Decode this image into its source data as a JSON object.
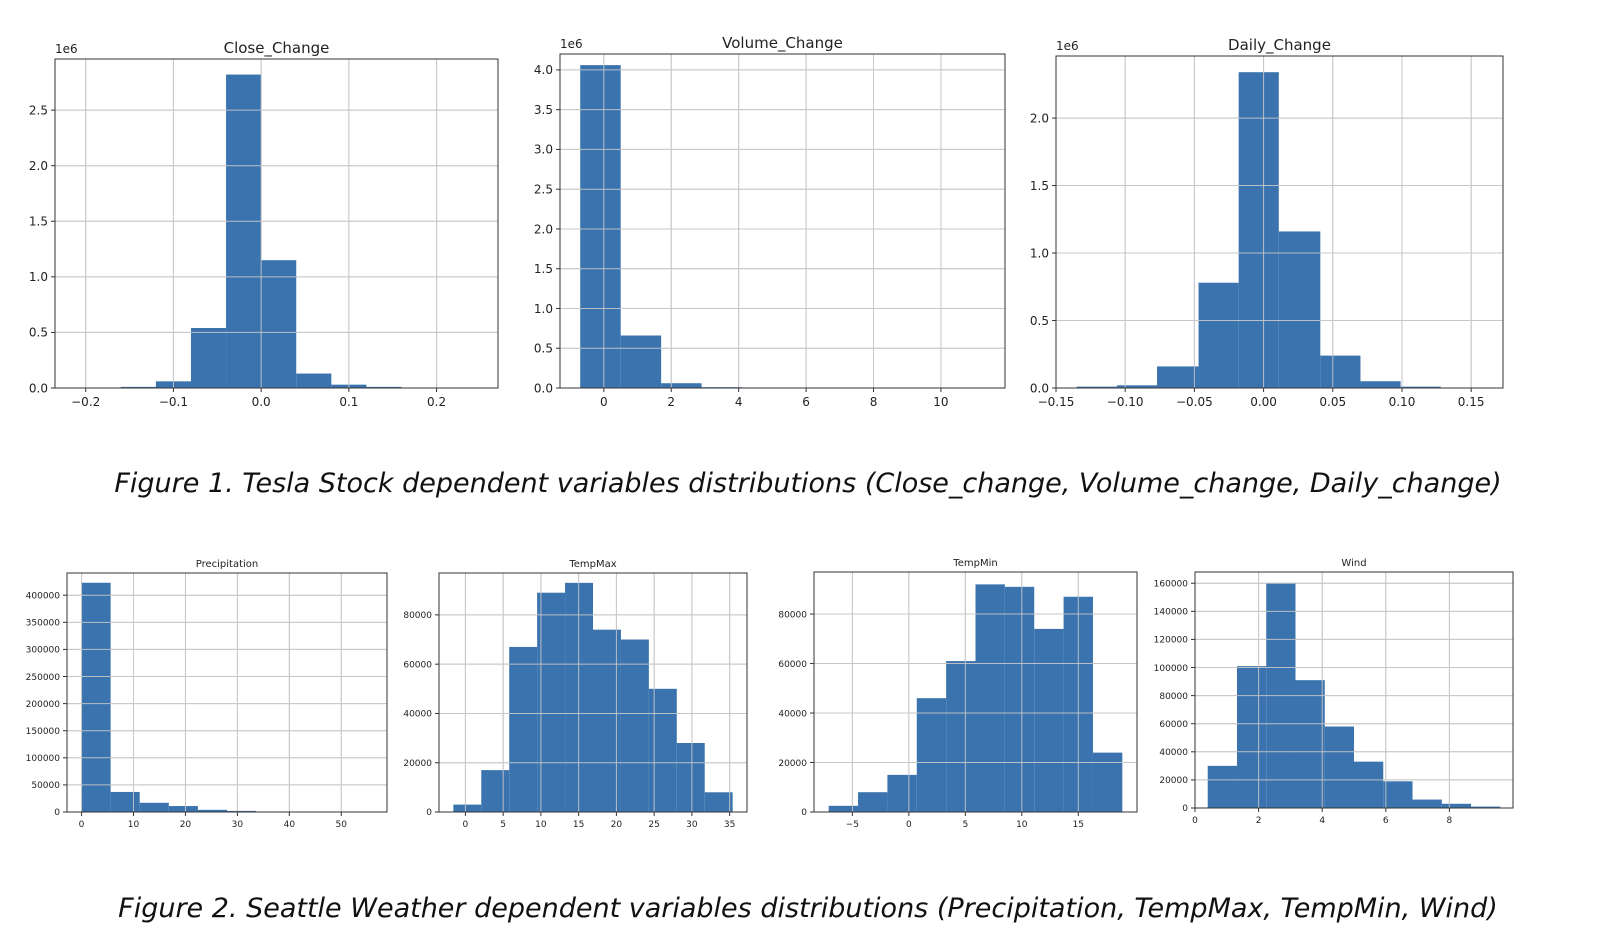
{
  "figure1": {
    "caption": "Figure 1. Tesla Stock dependent variables distributions (Close_change, Volume_change, Daily_change)"
  },
  "figure2": {
    "caption": "Figure 2. Seattle Weather dependent variables distributions (Precipitation, TempMax, TempMin, Wind)"
  },
  "style": {
    "bar_color": "#3a73ad",
    "grid_color": "#c8c8c8",
    "axis_color": "#333333"
  },
  "chart_data": [
    {
      "type": "bar",
      "title": "Close_Change",
      "multiplier": "1e6",
      "bin_edges": [
        -0.2,
        -0.16,
        -0.12,
        -0.08,
        -0.04,
        0.0,
        0.04,
        0.08,
        0.12,
        0.16,
        0.2
      ],
      "values": [
        0.0,
        0.01,
        0.06,
        0.54,
        2.82,
        1.15,
        0.13,
        0.03,
        0.01,
        0.0
      ],
      "xlim": [
        -0.235,
        0.27
      ],
      "ylim": [
        0,
        2.96
      ],
      "xticks": [
        -0.2,
        -0.1,
        0.0,
        0.1,
        0.2
      ],
      "xtick_labels": [
        "−0.2",
        "−0.1",
        "0.0",
        "0.1",
        "0.2"
      ],
      "yticks": [
        0.0,
        0.5,
        1.0,
        1.5,
        2.0,
        2.5
      ],
      "ytick_labels": [
        "0.0",
        "0.5",
        "1.0",
        "1.5",
        "2.0",
        "2.5"
      ],
      "grid": true
    },
    {
      "type": "bar",
      "title": "Volume_Change",
      "multiplier": "1e6",
      "bin_edges": [
        -0.7,
        0.5,
        1.7,
        2.9,
        4.1,
        5.3,
        6.5,
        7.7,
        8.9,
        10.1,
        11.3
      ],
      "values": [
        4.06,
        0.66,
        0.06,
        0.01,
        0.0,
        0.0,
        0.0,
        0.0,
        0.0,
        0.0
      ],
      "xlim": [
        -1.3,
        11.9
      ],
      "ylim": [
        0,
        4.2
      ],
      "xticks": [
        0,
        2,
        4,
        6,
        8,
        10
      ],
      "xtick_labels": [
        "0",
        "2",
        "4",
        "6",
        "8",
        "10"
      ],
      "yticks": [
        0.0,
        0.5,
        1.0,
        1.5,
        2.0,
        2.5,
        3.0,
        3.5,
        4.0
      ],
      "ytick_labels": [
        "0.0",
        "0.5",
        "1.0",
        "1.5",
        "2.0",
        "2.5",
        "3.0",
        "3.5",
        "4.0"
      ],
      "grid": true
    },
    {
      "type": "bar",
      "title": "Daily_Change",
      "multiplier": "1e6",
      "bin_edges": [
        -0.135,
        -0.106,
        -0.077,
        -0.047,
        -0.018,
        0.011,
        0.041,
        0.07,
        0.099,
        0.128,
        0.158
      ],
      "values": [
        0.01,
        0.02,
        0.16,
        0.78,
        2.34,
        1.16,
        0.24,
        0.05,
        0.01,
        0.0
      ],
      "xlim": [
        -0.15,
        0.173
      ],
      "ylim": [
        0,
        2.46
      ],
      "xticks": [
        -0.15,
        -0.1,
        -0.05,
        0.0,
        0.05,
        0.1,
        0.15
      ],
      "xtick_labels": [
        "−0.15",
        "−0.10",
        "−0.05",
        "0.00",
        "0.05",
        "0.10",
        "0.15"
      ],
      "yticks": [
        0.0,
        0.5,
        1.0,
        1.5,
        2.0
      ],
      "ytick_labels": [
        "0.0",
        "0.5",
        "1.0",
        "1.5",
        "2.0"
      ],
      "grid": true
    },
    {
      "type": "bar",
      "title": "Precipitation",
      "multiplier": "",
      "bin_edges": [
        0,
        5.6,
        11.2,
        16.8,
        22.4,
        28,
        33.6,
        39.2,
        44.8,
        50.4,
        56
      ],
      "values": [
        423000,
        37000,
        17000,
        11000,
        4000,
        2000,
        500,
        200,
        100,
        50
      ],
      "xlim": [
        -2.8,
        58.8
      ],
      "ylim": [
        0,
        441000
      ],
      "xticks": [
        0,
        10,
        20,
        30,
        40,
        50
      ],
      "xtick_labels": [
        "0",
        "10",
        "20",
        "30",
        "40",
        "50"
      ],
      "yticks": [
        0,
        50000,
        100000,
        150000,
        200000,
        250000,
        300000,
        350000,
        400000
      ],
      "ytick_labels": [
        "0",
        "50000",
        "100000",
        "150000",
        "200000",
        "250000",
        "300000",
        "350000",
        "400000"
      ],
      "grid": true
    },
    {
      "type": "bar",
      "title": "TempMax",
      "multiplier": "",
      "bin_edges": [
        -1.6,
        2.1,
        5.8,
        9.5,
        13.2,
        16.9,
        20.6,
        24.3,
        28.0,
        31.7,
        35.4
      ],
      "values": [
        3000,
        17000,
        67000,
        89000,
        93000,
        74000,
        70000,
        50000,
        28000,
        8000
      ],
      "xlim": [
        -3.5,
        37.3
      ],
      "ylim": [
        0,
        97000
      ],
      "xticks": [
        0,
        5,
        10,
        15,
        20,
        25,
        30,
        35
      ],
      "xtick_labels": [
        "0",
        "5",
        "10",
        "15",
        "20",
        "25",
        "30",
        "35"
      ],
      "yticks": [
        0,
        20000,
        40000,
        60000,
        80000
      ],
      "ytick_labels": [
        "0",
        "20000",
        "40000",
        "60000",
        "80000"
      ],
      "grid": true
    },
    {
      "type": "bar",
      "title": "TempMin",
      "multiplier": "",
      "bin_edges": [
        -7.1,
        -4.5,
        -1.9,
        0.7,
        3.3,
        5.9,
        8.5,
        11.1,
        13.7,
        16.3,
        18.9
      ],
      "values": [
        2500,
        8000,
        15000,
        46000,
        61000,
        92000,
        91000,
        74000,
        87000,
        24000
      ],
      "xlim": [
        -8.4,
        20.2
      ],
      "ylim": [
        0,
        97000
      ],
      "xticks": [
        -5,
        0,
        5,
        10,
        15
      ],
      "xtick_labels": [
        "−5",
        "0",
        "5",
        "10",
        "15"
      ],
      "yticks": [
        0,
        20000,
        40000,
        60000,
        80000
      ],
      "ytick_labels": [
        "0",
        "20000",
        "40000",
        "60000",
        "80000"
      ],
      "grid": true
    },
    {
      "type": "bar",
      "title": "Wind",
      "multiplier": "",
      "bin_edges": [
        0.4,
        1.32,
        2.24,
        3.16,
        4.08,
        5.0,
        5.92,
        6.84,
        7.76,
        8.68,
        9.6
      ],
      "values": [
        30000,
        101000,
        160000,
        91000,
        58000,
        33000,
        19000,
        6000,
        3000,
        1000
      ],
      "xlim": [
        0,
        10.0
      ],
      "ylim": [
        0,
        168000
      ],
      "xticks": [
        0,
        2,
        4,
        6,
        8
      ],
      "xtick_labels": [
        "0",
        "2",
        "4",
        "6",
        "8"
      ],
      "yticks": [
        0,
        20000,
        40000,
        60000,
        80000,
        100000,
        120000,
        140000,
        160000
      ],
      "ytick_labels": [
        "0",
        "20000",
        "40000",
        "60000",
        "80000",
        "100000",
        "120000",
        "140000",
        "160000"
      ],
      "grid": true
    }
  ]
}
